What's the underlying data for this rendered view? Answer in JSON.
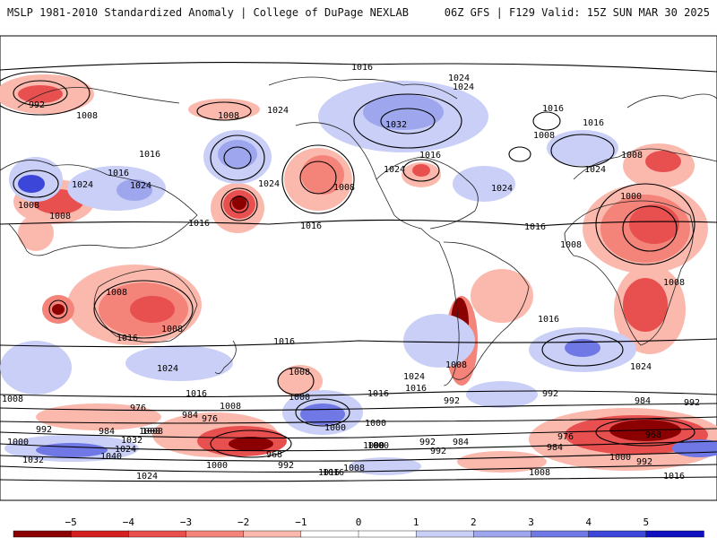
{
  "header": {
    "left": "MSLP 1981-2010 Standardized Anomaly | College of DuPage NEXLAB",
    "right": "06Z GFS | F129 Valid: 15Z SUN MAR 30 2025"
  },
  "isobar_labels": [
    {
      "id": "l-992-np",
      "text": "992"
    },
    {
      "id": "l-1008-np",
      "text": "1008"
    },
    {
      "id": "l-1016-top",
      "text": "1016"
    },
    {
      "id": "l-1024-top-a",
      "text": "1024"
    },
    {
      "id": "l-1024-top-b",
      "text": "1024"
    },
    {
      "id": "l-1016-atl",
      "text": "1016"
    },
    {
      "id": "l-1016-eur",
      "text": "1016"
    },
    {
      "id": "l-1008-eur",
      "text": "1008"
    },
    {
      "id": "l-1008-pac",
      "text": "1008"
    },
    {
      "id": "l-1024-pac",
      "text": "1024"
    },
    {
      "id": "l-1016-asia",
      "text": "1016"
    },
    {
      "id": "l-1024-asia",
      "text": "1024"
    },
    {
      "id": "l-1016-asia2",
      "text": "1016"
    },
    {
      "id": "l-1024-asia2",
      "text": "1024"
    },
    {
      "id": "l-1008-asia",
      "text": "1008"
    },
    {
      "id": "l-1008-asia2",
      "text": "1008"
    },
    {
      "id": "l-1032-can",
      "text": "1032"
    },
    {
      "id": "l-1016-ne",
      "text": "1016"
    },
    {
      "id": "l-1024-us",
      "text": "1024"
    },
    {
      "id": "l-1008-wc",
      "text": "1008"
    },
    {
      "id": "l-1024-atl",
      "text": "1024"
    },
    {
      "id": "l-1024-eur",
      "text": "1024"
    },
    {
      "id": "l-1008-eur2",
      "text": "1008"
    },
    {
      "id": "l-1000-afr",
      "text": "1000"
    },
    {
      "id": "l-1024-npac",
      "text": "1024"
    },
    {
      "id": "l-1016-npac",
      "text": "1016"
    },
    {
      "id": "l-1016-npac2",
      "text": "1016"
    },
    {
      "id": "l-1016-catl",
      "text": "1016"
    },
    {
      "id": "l-1008-sahara",
      "text": "1008"
    },
    {
      "id": "l-1008-safr",
      "text": "1008"
    },
    {
      "id": "l-1008-aus",
      "text": "1008"
    },
    {
      "id": "l-1016-aus",
      "text": "1016"
    },
    {
      "id": "l-1008-aus2",
      "text": "1008"
    },
    {
      "id": "l-1016-spac",
      "text": "1016"
    },
    {
      "id": "l-1016-satl",
      "text": "1016"
    },
    {
      "id": "l-1024-tas",
      "text": "1024"
    },
    {
      "id": "l-1024-spac",
      "text": "1024"
    },
    {
      "id": "l-1016-spac2",
      "text": "1016"
    },
    {
      "id": "l-1008-sam",
      "text": "1008"
    },
    {
      "id": "l-1024-sind",
      "text": "1024"
    },
    {
      "id": "l-1016-sind",
      "text": "1016"
    },
    {
      "id": "l-1008-so-w",
      "text": "1008"
    },
    {
      "id": "l-1016-so-a",
      "text": "1016"
    },
    {
      "id": "l-1008-so-b",
      "text": "1008"
    },
    {
      "id": "l-1000-so-c",
      "text": "1000"
    },
    {
      "id": "l-1000-so-d",
      "text": "1000"
    },
    {
      "id": "l-1008-so-e",
      "text": "1008"
    },
    {
      "id": "l-992-so-f",
      "text": "992"
    },
    {
      "id": "l-1008-so-g",
      "text": "1008"
    },
    {
      "id": "l-1000-so-h",
      "text": "1000"
    },
    {
      "id": "l-976-so-a",
      "text": "976"
    },
    {
      "id": "l-984-so-a",
      "text": "984"
    },
    {
      "id": "l-976-so-b",
      "text": "976"
    },
    {
      "id": "l-992-so-a",
      "text": "992"
    },
    {
      "id": "l-992-so-b",
      "text": "992"
    },
    {
      "id": "l-984-so-b",
      "text": "984"
    },
    {
      "id": "l-1008-so-i",
      "text": "1008"
    },
    {
      "id": "l-1032-so",
      "text": "1032"
    },
    {
      "id": "l-1040-so",
      "text": "1040"
    },
    {
      "id": "l-1000-so-w",
      "text": "1000"
    },
    {
      "id": "l-1032-so-w",
      "text": "1032"
    },
    {
      "id": "l-1024-so-w",
      "text": "1024"
    },
    {
      "id": "l-968-so",
      "text": "968"
    },
    {
      "id": "l-992-so-c",
      "text": "992"
    },
    {
      "id": "l-1000-so-i",
      "text": "1000"
    },
    {
      "id": "l-1016-so-j",
      "text": "1016"
    },
    {
      "id": "l-1008-so-k",
      "text": "1008"
    },
    {
      "id": "l-1000-so-l",
      "text": "1000"
    },
    {
      "id": "l-992-so-d",
      "text": "992"
    },
    {
      "id": "l-984-so-c",
      "text": "984"
    },
    {
      "id": "l-992-so-e",
      "text": "992"
    },
    {
      "id": "l-984-so-d",
      "text": "984"
    },
    {
      "id": "l-976-so-c",
      "text": "976"
    },
    {
      "id": "l-968-so-b",
      "text": "968"
    },
    {
      "id": "l-1000-so-m",
      "text": "1000"
    },
    {
      "id": "l-992-so-f2",
      "text": "992"
    },
    {
      "id": "l-1016-so-n",
      "text": "1016"
    },
    {
      "id": "l-1008-so-o",
      "text": "1008"
    },
    {
      "id": "l-1000-sam-s",
      "text": "1000"
    },
    {
      "id": "l-992-sam-s",
      "text": "992"
    },
    {
      "id": "l-1016-sam-s",
      "text": "1016"
    },
    {
      "id": "l-1024-sam-s",
      "text": "1024"
    },
    {
      "id": "l-984-sam-s",
      "text": "984"
    }
  ],
  "colorbar": {
    "ticks": [
      "−5",
      "−4",
      "−3",
      "−2",
      "−1",
      "0",
      "1",
      "2",
      "3",
      "4",
      "5"
    ],
    "colors": [
      "#8b0000",
      "#d42020",
      "#e85050",
      "#f4847a",
      "#fbb9ad",
      "#ffffff",
      "#ffffff",
      "#c9cff6",
      "#9ea6ee",
      "#6f78e4",
      "#3c46d8",
      "#1010c0"
    ]
  }
}
